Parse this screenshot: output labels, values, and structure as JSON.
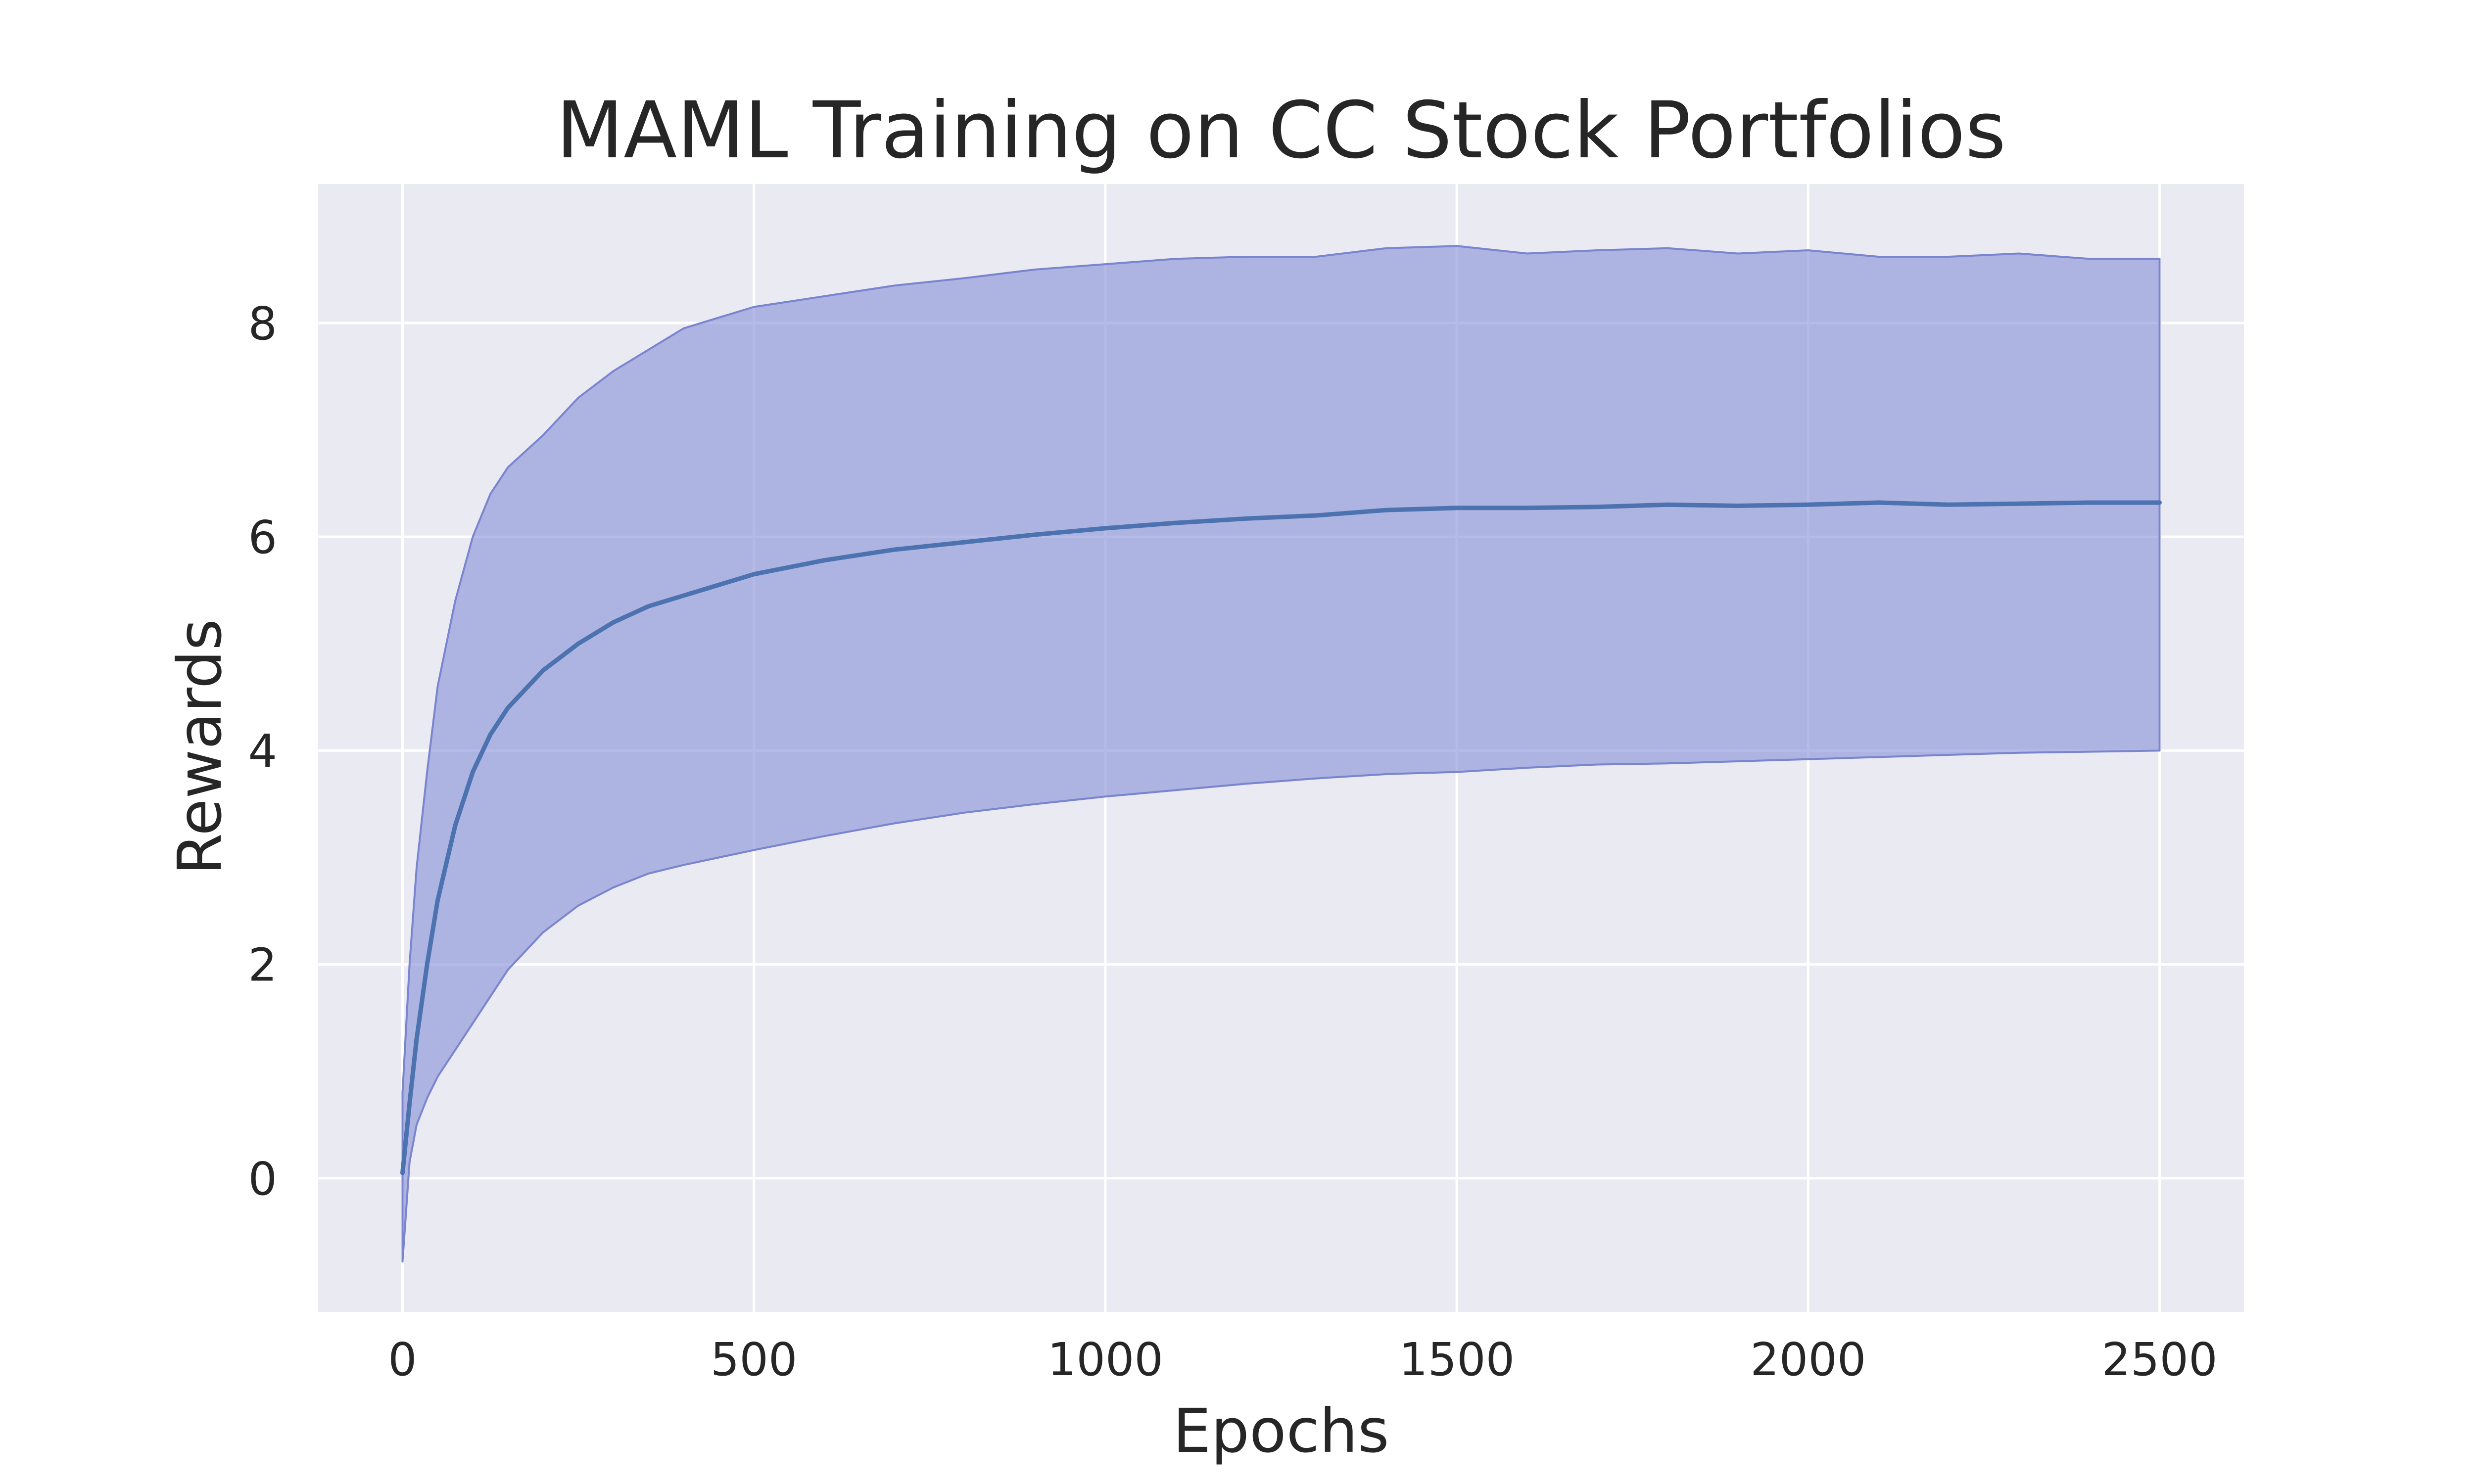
{
  "chart_data": {
    "type": "line",
    "title": "MAML Training on CC Stock Portfolios",
    "xlabel": "Epochs",
    "ylabel": "Rewards",
    "xlim": [
      -120,
      2620
    ],
    "ylim": [
      -1.25,
      9.3
    ],
    "xticks": [
      0,
      500,
      1000,
      1500,
      2000,
      2500
    ],
    "yticks": [
      0,
      2,
      4,
      6,
      8
    ],
    "grid": true,
    "colors": {
      "background": "#EAEAF2",
      "grid": "#FFFFFF",
      "line": "#4C72B0",
      "band_fill": "#8E96D8",
      "band_edge": "#7B84CF"
    },
    "series": [
      {
        "x": [
          0,
          10,
          20,
          35,
          50,
          75,
          100,
          125,
          150,
          200,
          250,
          300,
          350,
          400,
          450,
          500,
          600,
          700,
          800,
          900,
          1000,
          1100,
          1200,
          1300,
          1400,
          1500,
          1600,
          1700,
          1800,
          1900,
          2000,
          2100,
          2200,
          2300,
          2400,
          2500
        ],
        "mean": [
          0.05,
          0.7,
          1.3,
          2.0,
          2.6,
          3.3,
          3.8,
          4.15,
          4.4,
          4.75,
          5.0,
          5.2,
          5.35,
          5.45,
          5.55,
          5.65,
          5.78,
          5.88,
          5.95,
          6.02,
          6.08,
          6.13,
          6.17,
          6.2,
          6.25,
          6.27,
          6.27,
          6.28,
          6.3,
          6.29,
          6.3,
          6.32,
          6.3,
          6.31,
          6.32,
          6.32
        ],
        "upper": [
          0.8,
          2.0,
          2.9,
          3.8,
          4.6,
          5.4,
          6.0,
          6.4,
          6.65,
          6.95,
          7.3,
          7.55,
          7.75,
          7.95,
          8.05,
          8.15,
          8.25,
          8.35,
          8.42,
          8.5,
          8.55,
          8.6,
          8.62,
          8.62,
          8.7,
          8.72,
          8.65,
          8.68,
          8.7,
          8.65,
          8.68,
          8.62,
          8.62,
          8.65,
          8.6,
          8.6
        ],
        "lower": [
          -0.78,
          0.15,
          0.5,
          0.75,
          0.95,
          1.2,
          1.45,
          1.7,
          1.95,
          2.3,
          2.55,
          2.72,
          2.85,
          2.93,
          3.0,
          3.07,
          3.2,
          3.32,
          3.42,
          3.5,
          3.57,
          3.63,
          3.69,
          3.74,
          3.78,
          3.8,
          3.84,
          3.87,
          3.88,
          3.9,
          3.92,
          3.94,
          3.96,
          3.98,
          3.99,
          4.0
        ]
      }
    ]
  }
}
